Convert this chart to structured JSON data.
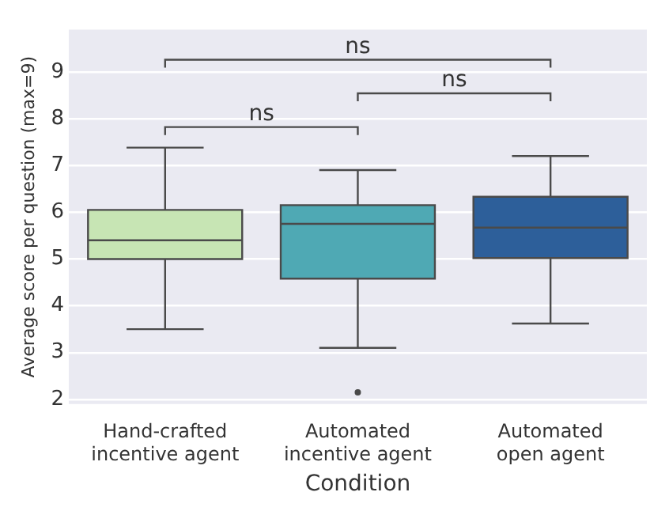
{
  "chart_data": {
    "type": "box",
    "xlabel": "Condition",
    "ylabel": "Average score per question (max=9)",
    "categories": [
      "Hand-crafted\nincentive agent",
      "Automated\nincentive agent",
      "Automated\nopen agent"
    ],
    "colors": [
      "#c7e5b4",
      "#4fa9b4",
      "#2d5f9a"
    ],
    "boxes": [
      {
        "low": 3.5,
        "q1": 5.0,
        "median": 5.4,
        "q3": 6.05,
        "high": 7.38
      },
      {
        "low": 3.1,
        "q1": 4.58,
        "median": 5.75,
        "q3": 6.15,
        "high": 6.9,
        "outliers": [
          2.15
        ]
      },
      {
        "low": 3.62,
        "q1": 5.02,
        "median": 5.67,
        "q3": 6.33,
        "high": 7.2
      }
    ],
    "annotations": [
      "ns",
      "ns",
      "ns"
    ],
    "ylim": [
      1.9,
      9.9
    ],
    "yticks": [
      2,
      3,
      4,
      5,
      6,
      7,
      8,
      9
    ],
    "grid": "y",
    "legend": false
  }
}
